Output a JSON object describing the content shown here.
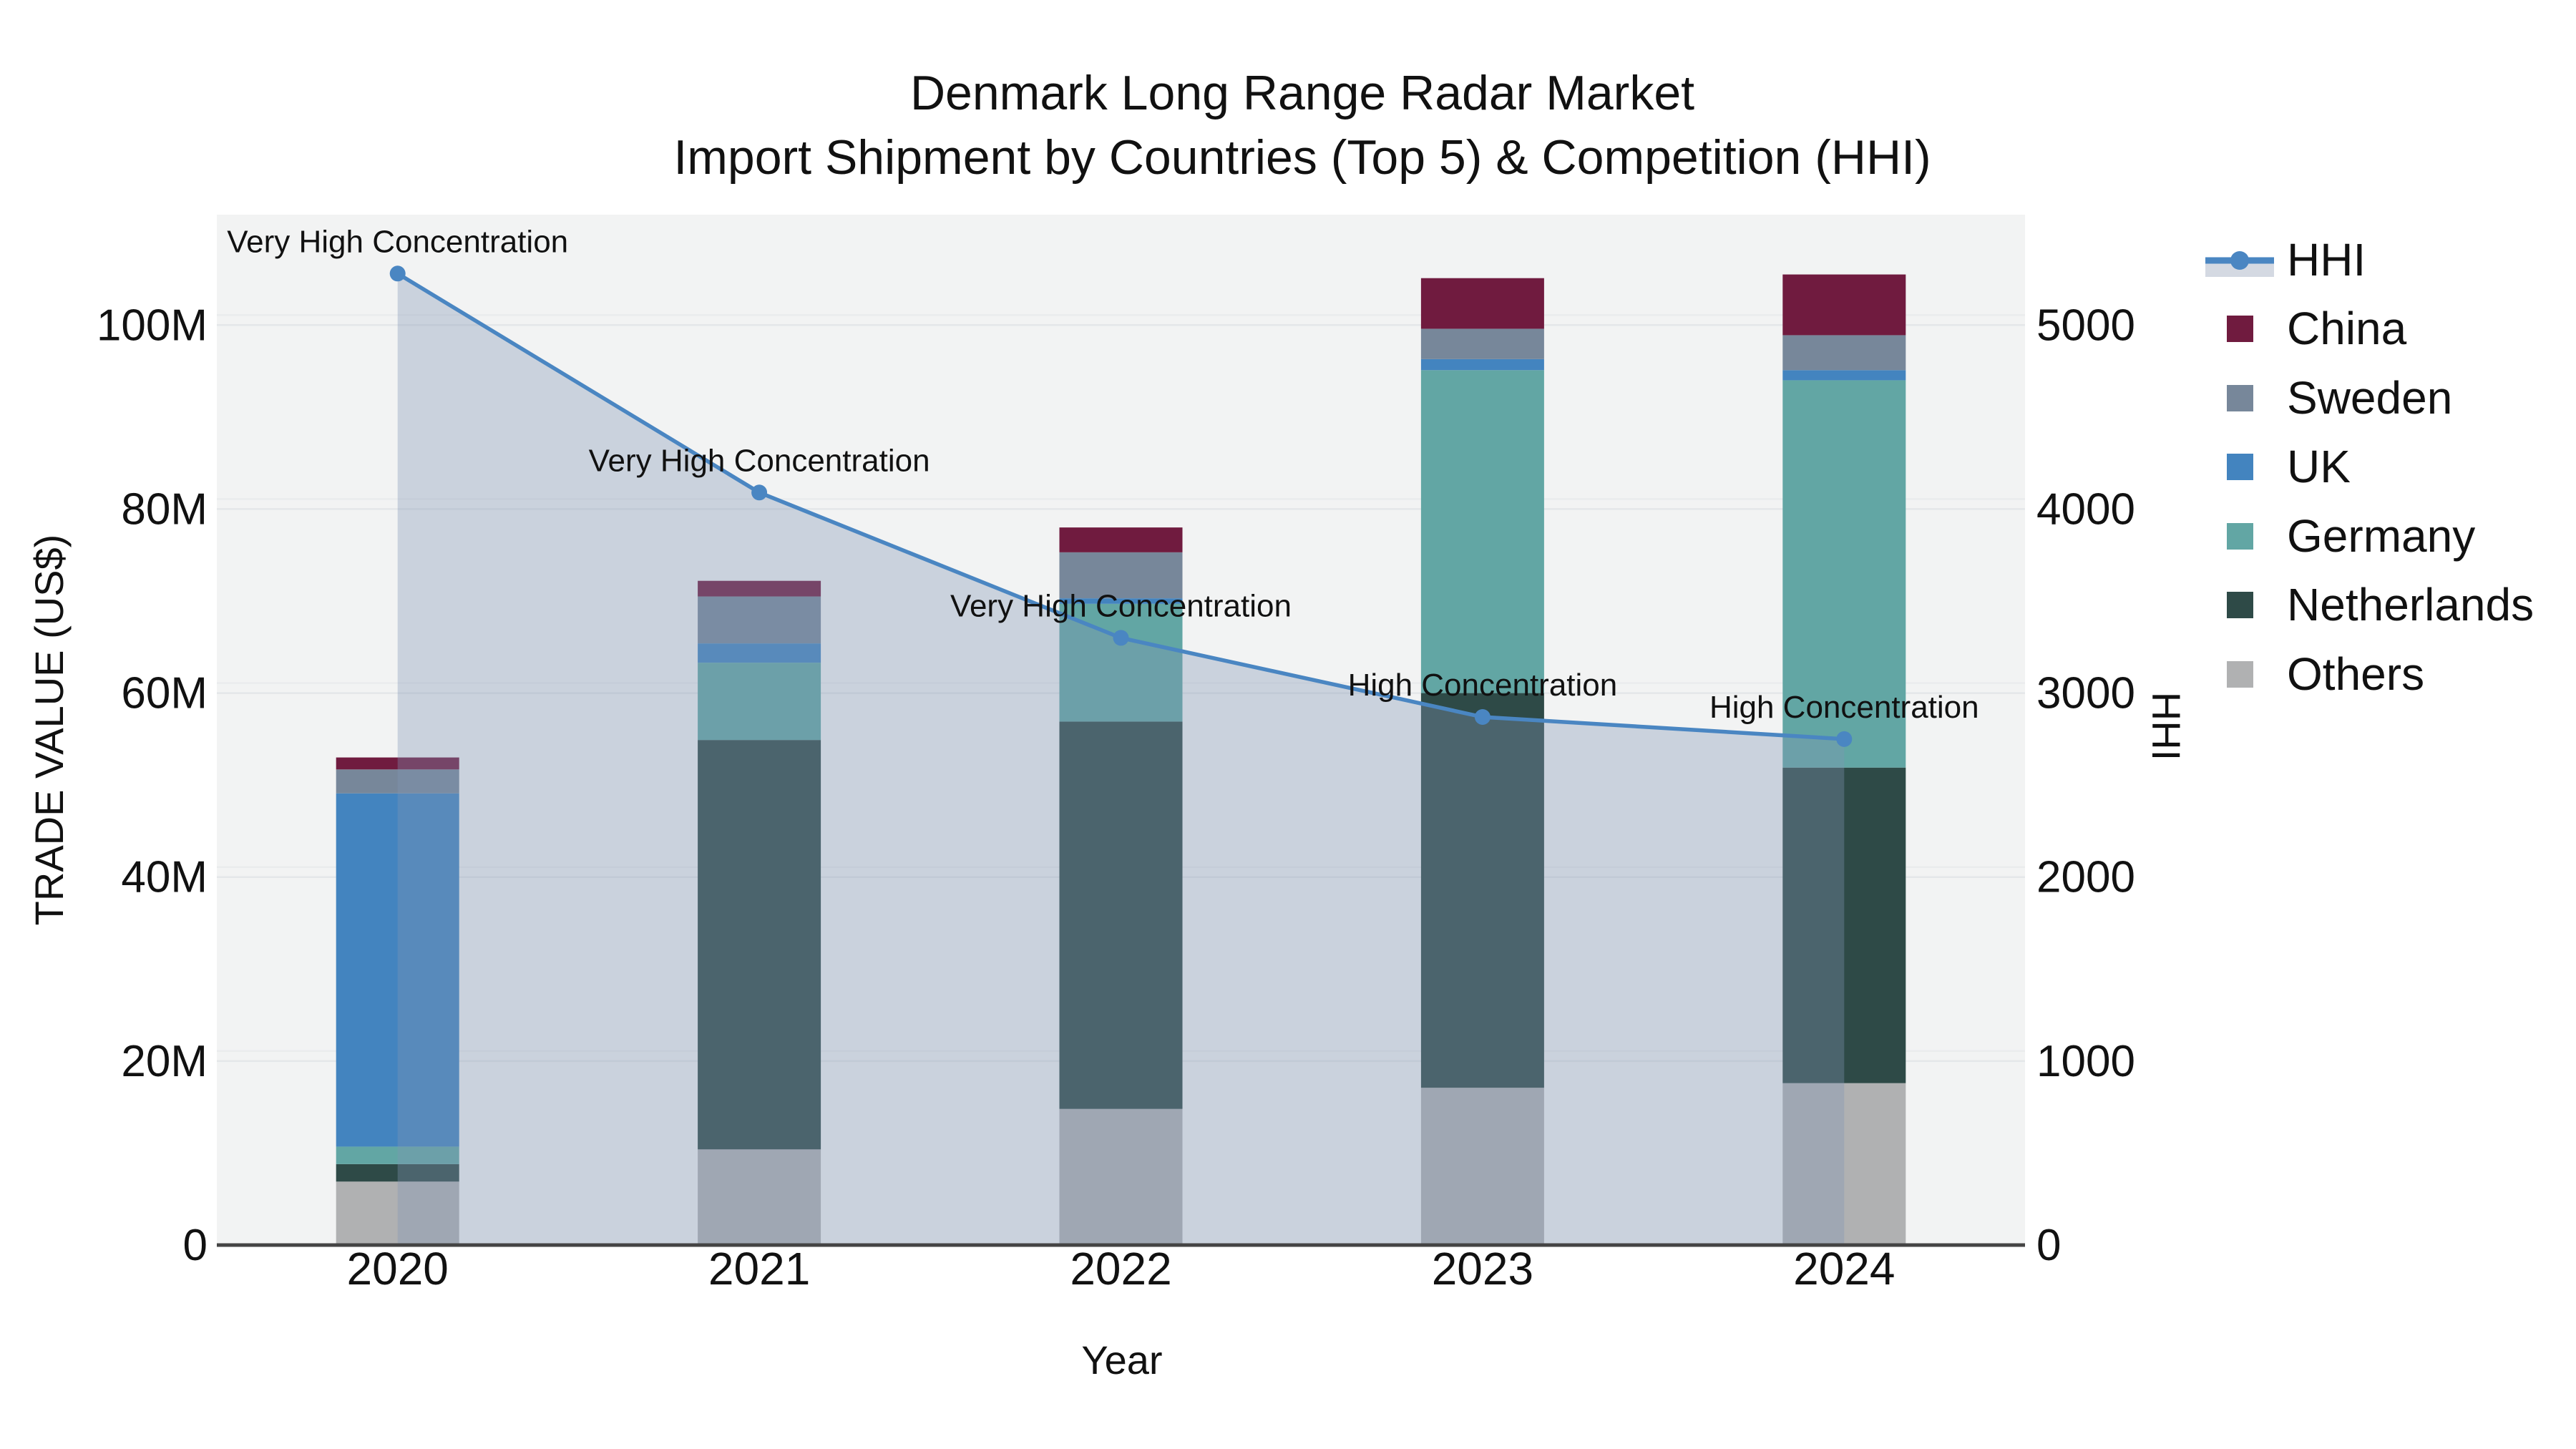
{
  "title": {
    "line1": "Denmark Long Range Radar Market",
    "line2": "Import Shipment by Countries (Top 5) & Competition (HHI)"
  },
  "axes": {
    "x_title": "Year",
    "y_left_title": "TRADE VALUE (US$)",
    "y_right_title": "HHI",
    "y_left_tick_labels": [
      "0",
      "20M",
      "40M",
      "60M",
      "80M",
      "100M"
    ],
    "y_right_tick_labels": [
      "0",
      "1000",
      "2000",
      "3000",
      "4000",
      "5000"
    ]
  },
  "legend": {
    "items": [
      {
        "label": "HHI",
        "type": "line",
        "color": "#4a86c2"
      },
      {
        "label": "China",
        "type": "swatch",
        "color": "#701b3f"
      },
      {
        "label": "Sweden",
        "type": "swatch",
        "color": "#77879a"
      },
      {
        "label": "UK",
        "type": "swatch",
        "color": "#4384bf"
      },
      {
        "label": "Germany",
        "type": "swatch",
        "color": "#62a6a4"
      },
      {
        "label": "Netherlands",
        "type": "swatch",
        "color": "#2e4a47"
      },
      {
        "label": "Others",
        "type": "swatch",
        "color": "#b0b1b2"
      }
    ]
  },
  "colors": {
    "plot_bg": "#f2f3f3",
    "grid": "#e4e7e9",
    "axis_line": "#444444",
    "text": "#111111",
    "hhi_line": "#4a86c2",
    "hhi_area": "rgba(130,150,180,0.35)",
    "legend_band": "#d4d9e2"
  },
  "chart_data": {
    "type": "composite",
    "subtypes": [
      "stacked-bar",
      "line-with-area"
    ],
    "title": "Denmark Long Range Radar Market — Import Shipment by Countries (Top 5) & Competition (HHI)",
    "xlabel": "Year",
    "categories": [
      "2020",
      "2021",
      "2022",
      "2023",
      "2024"
    ],
    "bar_value_unit": "US$ millions",
    "series": [
      {
        "name": "Others",
        "color": "#b0b1b2",
        "values": [
          6.9,
          10.4,
          14.8,
          17.1,
          17.6
        ]
      },
      {
        "name": "Netherlands",
        "color": "#2e4a47",
        "values": [
          1.9,
          44.5,
          42.1,
          42.9,
          34.3
        ]
      },
      {
        "name": "Germany",
        "color": "#62a6a4",
        "values": [
          1.9,
          8.4,
          12.8,
          35.1,
          42.1
        ]
      },
      {
        "name": "UK",
        "color": "#4384bf",
        "values": [
          38.4,
          2.1,
          0.6,
          1.2,
          1.1
        ]
      },
      {
        "name": "Sweden",
        "color": "#77879a",
        "values": [
          2.6,
          5.1,
          5.0,
          3.3,
          3.8
        ]
      },
      {
        "name": "China",
        "color": "#701b3f",
        "values": [
          1.3,
          1.7,
          2.7,
          5.5,
          6.6
        ]
      }
    ],
    "bar_totals": [
      53.0,
      72.2,
      78.0,
      105.1,
      105.5
    ],
    "line": {
      "name": "HHI",
      "axis": "right",
      "values": [
        5280,
        4090,
        3300,
        2870,
        2750
      ]
    },
    "annotations": [
      "Very High Concentration",
      "Very High Concentration",
      "Very High Concentration",
      "High Concentration",
      "High Concentration"
    ],
    "y_left": {
      "label": "TRADE VALUE (US$)",
      "range_millions": [
        0,
        112
      ],
      "tick_step_millions": 20,
      "grid": true
    },
    "y_right": {
      "label": "HHI",
      "range": [
        0,
        5600
      ],
      "tick_step": 1000
    },
    "legend_position": "right"
  }
}
